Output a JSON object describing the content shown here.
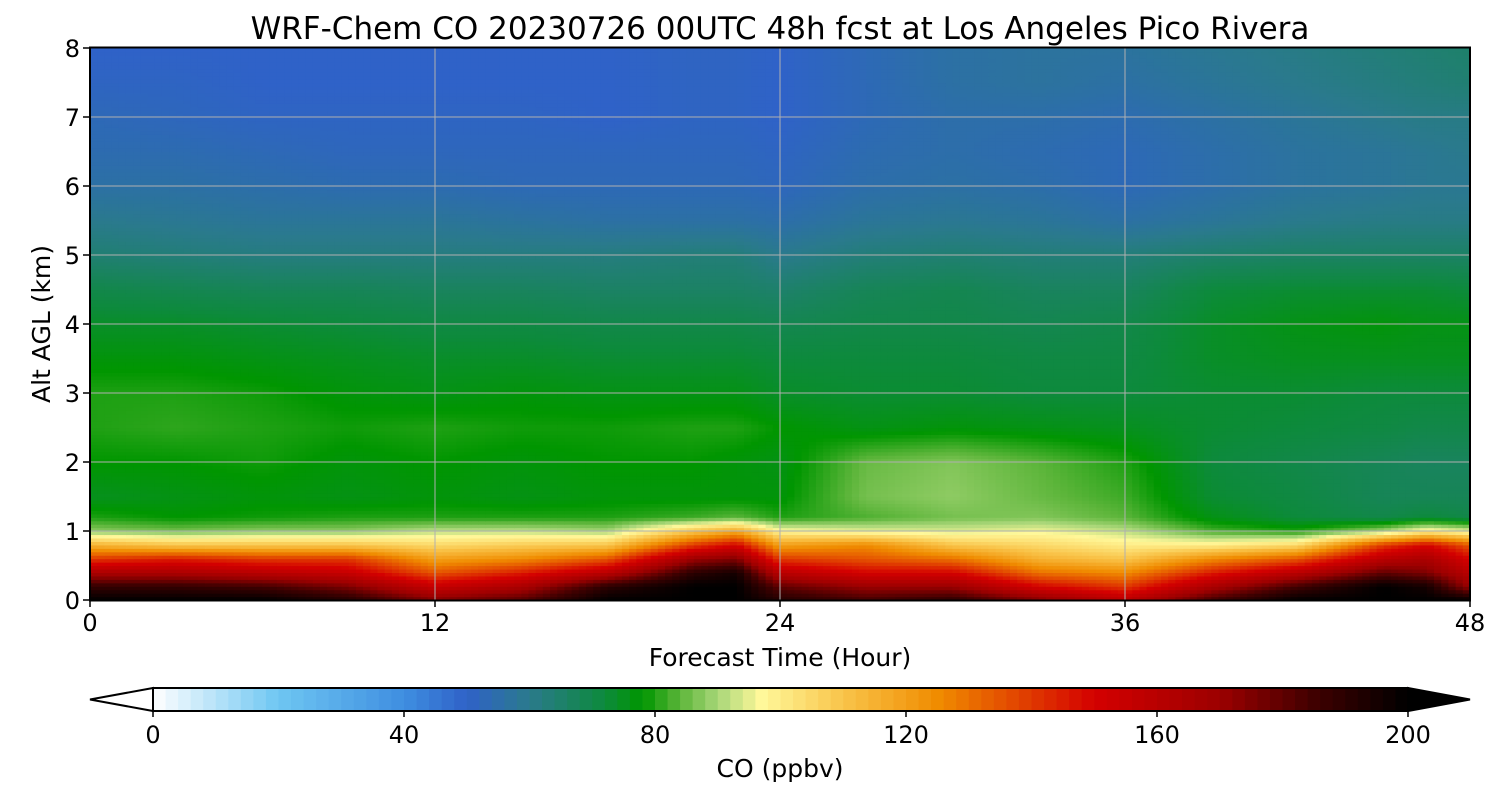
{
  "chart_data": {
    "type": "heatmap",
    "title": "WRF-Chem CO  20230726 00UTC 48h fcst at Los Angeles Pico Rivera",
    "xlabel": "Forecast Time (Hour)",
    "ylabel": "Alt AGL (km)",
    "xlim": [
      0,
      48
    ],
    "ylim": [
      0,
      8
    ],
    "xticks": [
      0,
      12,
      24,
      36,
      48
    ],
    "yticks": [
      0,
      1,
      2,
      3,
      4,
      5,
      6,
      7,
      8
    ],
    "grid": true,
    "x": [
      0,
      3,
      6,
      9,
      12,
      15,
      18,
      21,
      22.5,
      24,
      27,
      30,
      33,
      36,
      39,
      42,
      45,
      46.5,
      48
    ],
    "y": [
      0,
      0.2,
      0.4,
      0.6,
      0.8,
      1.0,
      1.2,
      1.5,
      2.0,
      2.5,
      3.0,
      3.5,
      4.0,
      4.5,
      5.0,
      5.5,
      6.0,
      6.5,
      7.0,
      7.5,
      8.0
    ],
    "z": [
      [
        200,
        200,
        200,
        192,
        175,
        182,
        200,
        200,
        200,
        192,
        185,
        190,
        175,
        160,
        185,
        200,
        200,
        200,
        200
      ],
      [
        188,
        188,
        185,
        175,
        155,
        165,
        190,
        200,
        200,
        180,
        170,
        170,
        150,
        140,
        165,
        185,
        200,
        195,
        170
      ],
      [
        165,
        165,
        160,
        155,
        135,
        145,
        160,
        190,
        195,
        160,
        150,
        150,
        130,
        125,
        145,
        160,
        180,
        175,
        160
      ],
      [
        140,
        145,
        140,
        140,
        120,
        125,
        135,
        170,
        175,
        140,
        135,
        130,
        115,
        110,
        125,
        135,
        160,
        165,
        150
      ],
      [
        115,
        110,
        110,
        110,
        105,
        108,
        110,
        140,
        150,
        120,
        125,
        110,
        105,
        100,
        100,
        105,
        140,
        150,
        135
      ],
      [
        88,
        86,
        88,
        88,
        92,
        92,
        90,
        110,
        118,
        98,
        95,
        94,
        96,
        92,
        83,
        80,
        90,
        100,
        95
      ],
      [
        80,
        78,
        79,
        80,
        80,
        80,
        80,
        82,
        84,
        80,
        83,
        86,
        87,
        84,
        76,
        72,
        70,
        72,
        70
      ],
      [
        75,
        76,
        77,
        76,
        77,
        76,
        77,
        77,
        77,
        77,
        86,
        88,
        85,
        82,
        73,
        71,
        68,
        68,
        68
      ],
      [
        78,
        78,
        79,
        77,
        78,
        77,
        78,
        78,
        77,
        76,
        85,
        87,
        84,
        80,
        72,
        70,
        68,
        67,
        67
      ],
      [
        80,
        81,
        80,
        79,
        80,
        79,
        79,
        80,
        80,
        78,
        76,
        77,
        76,
        75,
        73,
        72,
        71,
        70,
        70
      ],
      [
        80,
        80,
        79,
        77,
        76,
        77,
        76,
        76,
        76,
        74,
        73,
        73,
        72,
        72,
        73,
        73,
        72,
        72,
        72
      ],
      [
        77,
        77,
        76,
        75,
        74,
        74,
        73,
        73,
        73,
        72,
        72,
        72,
        71,
        71,
        74,
        75,
        75,
        75,
        75
      ],
      [
        74,
        74,
        73,
        72,
        71,
        71,
        70,
        70,
        70,
        69,
        70,
        70,
        69,
        70,
        74,
        76,
        77,
        76,
        76
      ],
      [
        70,
        69,
        68,
        68,
        67,
        67,
        66,
        66,
        66,
        65,
        68,
        69,
        67,
        67,
        72,
        73,
        73,
        73,
        72
      ],
      [
        64,
        63,
        62,
        62,
        62,
        62,
        62,
        63,
        63,
        60,
        63,
        64,
        63,
        63,
        65,
        66,
        66,
        66,
        66
      ],
      [
        60,
        59,
        58,
        58,
        58,
        57,
        56,
        56,
        56,
        55,
        58,
        59,
        58,
        56,
        58,
        60,
        61,
        61,
        61
      ],
      [
        56,
        56,
        55,
        54,
        54,
        53,
        53,
        53,
        53,
        52,
        55,
        56,
        55,
        53,
        55,
        57,
        58,
        59,
        59
      ],
      [
        54,
        54,
        53,
        52,
        52,
        52,
        52,
        52,
        52,
        51,
        54,
        55,
        54,
        53,
        55,
        57,
        58,
        59,
        60
      ],
      [
        53,
        52,
        51,
        51,
        51,
        51,
        50,
        51,
        51,
        50,
        53,
        55,
        55,
        54,
        56,
        58,
        60,
        61,
        61
      ],
      [
        51,
        51,
        50,
        50,
        50,
        50,
        50,
        51,
        51,
        50,
        53,
        56,
        57,
        56,
        58,
        60,
        62,
        63,
        64
      ],
      [
        50,
        50,
        50,
        50,
        50,
        50,
        50,
        51,
        51,
        50,
        53,
        56,
        57,
        57,
        59,
        61,
        63,
        64,
        65
      ]
    ],
    "colorbar": {
      "label": "CO  (ppbv)",
      "min": 0,
      "max": 200,
      "ticks": [
        0,
        40,
        80,
        120,
        160,
        200
      ],
      "extend": "both",
      "orientation": "horizontal",
      "stops": [
        {
          "v": 0,
          "c": "#ffffff"
        },
        {
          "v": 20,
          "c": "#6ec6f2"
        },
        {
          "v": 40,
          "c": "#3f8ee0"
        },
        {
          "v": 50,
          "c": "#2f62c8"
        },
        {
          "v": 60,
          "c": "#2a7a8c"
        },
        {
          "v": 72,
          "c": "#0d8a3c"
        },
        {
          "v": 78,
          "c": "#009600"
        },
        {
          "v": 84,
          "c": "#5cb53a"
        },
        {
          "v": 90,
          "c": "#a8d678"
        },
        {
          "v": 97,
          "c": "#fff89a"
        },
        {
          "v": 110,
          "c": "#f9c44a"
        },
        {
          "v": 125,
          "c": "#f08c00"
        },
        {
          "v": 150,
          "c": "#d40000"
        },
        {
          "v": 170,
          "c": "#9c0000"
        },
        {
          "v": 185,
          "c": "#400000"
        },
        {
          "v": 200,
          "c": "#000000"
        }
      ]
    }
  }
}
